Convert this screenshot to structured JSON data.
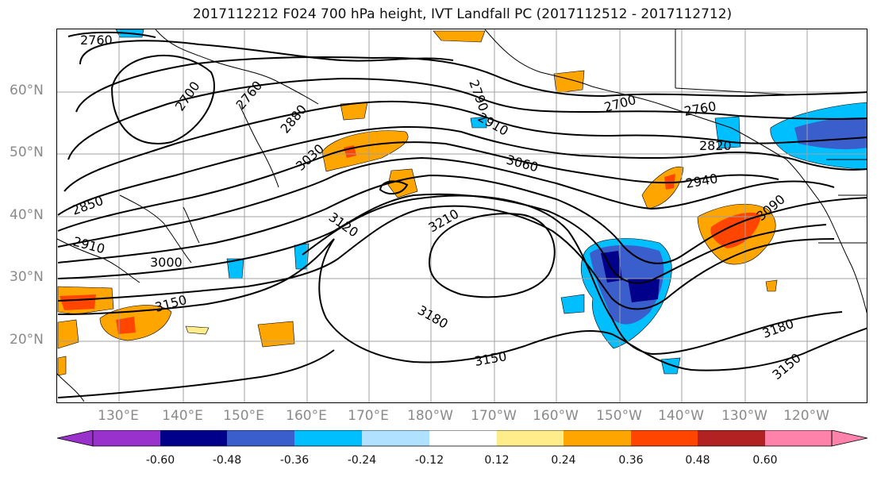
{
  "title": "2017112212 F024 700 hPa height, IVT Landfall PC (2017112512 - 2017112712)",
  "latitude_labels": [
    "60°N",
    "50°N",
    "40°N",
    "30°N",
    "20°N"
  ],
  "longitude_labels": [
    "130°E",
    "140°E",
    "150°E",
    "160°E",
    "170°E",
    "180°W",
    "170°W",
    "160°W",
    "150°W",
    "140°W",
    "130°W",
    "120°W"
  ],
  "contour_labels": [
    "2760",
    "2700",
    "2760",
    "2880",
    "2790",
    "2910",
    "2700",
    "2760",
    "2820",
    "3030",
    "3060",
    "2940",
    "3090",
    "2850",
    "2910",
    "3000",
    "3120",
    "3210",
    "3150",
    "3180",
    "3150",
    "3180",
    "3150"
  ],
  "colorbar": {
    "tick_labels": [
      "-0.60",
      "-0.48",
      "-0.36",
      "-0.24",
      "-0.12",
      "0.12",
      "0.24",
      "0.36",
      "0.48",
      "0.60"
    ],
    "colors": [
      "#9932cc",
      "#00008b",
      "#3a5fcd",
      "#00bfff",
      "#b0e2ff",
      "#ffffff",
      "#ffec8b",
      "#ffa500",
      "#ff4500",
      "#b22222",
      "#ff82ab"
    ]
  },
  "colors": {
    "contour": "#000000",
    "grid": "#a0a0a0",
    "axis_label": "#8a8a8a"
  }
}
